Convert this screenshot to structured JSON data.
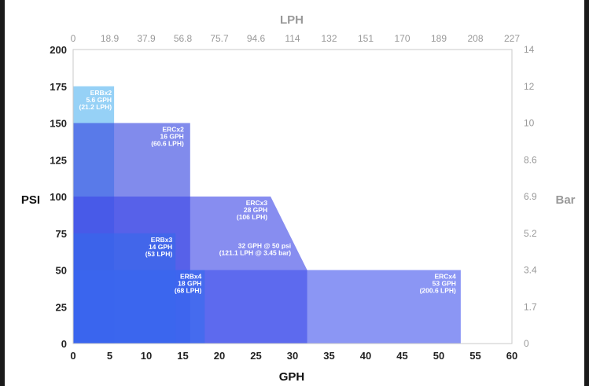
{
  "chart_data": {
    "type": "area",
    "xlabel": "GPH",
    "ylabel": "PSI",
    "x2label": "LPH",
    "y2label": "Bar",
    "xlim": [
      0,
      60
    ],
    "ylim": [
      0,
      200
    ],
    "x_ticks": [
      "0",
      "5",
      "10",
      "15",
      "20",
      "25",
      "30",
      "35",
      "40",
      "45",
      "50",
      "55",
      "60"
    ],
    "y_ticks": [
      "0",
      "25",
      "50",
      "75",
      "100",
      "125",
      "150",
      "175",
      "200"
    ],
    "x2_ticks": [
      "0",
      "18.9",
      "37.9",
      "56.8",
      "75.7",
      "94.6",
      "114",
      "132",
      "151",
      "170",
      "189",
      "208",
      "227"
    ],
    "y2_ticks": [
      "0",
      "1.7",
      "3.4",
      "5.2",
      "6.9",
      "8.6",
      "10",
      "12",
      "14"
    ],
    "series": [
      {
        "name": "ERBx2",
        "label": [
          "ERBx2",
          "5.6 GPH",
          "(21.2 LPH)"
        ],
        "color": "#55b4f0",
        "polygon": [
          [
            0,
            0
          ],
          [
            5.6,
            0
          ],
          [
            5.6,
            175
          ],
          [
            0,
            175
          ]
        ]
      },
      {
        "name": "ERCx2",
        "label": [
          "ERCx2",
          "16 GPH",
          "(60.6 LPH)"
        ],
        "color": "#3344e0",
        "polygon": [
          [
            0,
            0
          ],
          [
            16,
            0
          ],
          [
            16,
            150
          ],
          [
            0,
            150
          ]
        ]
      },
      {
        "name": "ERBx3",
        "label": [
          "ERBx3",
          "14 GPH",
          "(53 LPH)"
        ],
        "color": "#2a9ff0",
        "polygon": [
          [
            0,
            0
          ],
          [
            14,
            0
          ],
          [
            14,
            75
          ],
          [
            0,
            75
          ]
        ]
      },
      {
        "name": "ERCx3",
        "label": [
          "ERCx3",
          "28 GPH",
          "(106 LPH)"
        ],
        "color": "#3d47e6",
        "polygon": [
          [
            0,
            0
          ],
          [
            32,
            0
          ],
          [
            32,
            50
          ],
          [
            27,
            100
          ],
          [
            0,
            100
          ]
        ]
      },
      {
        "name": "ERBx4",
        "label": [
          "ERBx4",
          "18 GPH",
          "(68 LPH)"
        ],
        "color": "#2090f0",
        "polygon": [
          [
            0,
            0
          ],
          [
            18,
            0
          ],
          [
            18,
            50
          ],
          [
            0,
            50
          ]
        ]
      },
      {
        "name": "ERCx4",
        "label": [
          "ERCx4",
          "53 GPH",
          "(200.6 LPH)"
        ],
        "color": "#4455ee",
        "polygon": [
          [
            0,
            0
          ],
          [
            53,
            0
          ],
          [
            53,
            50
          ],
          [
            0,
            50
          ]
        ]
      }
    ],
    "annotations": [
      {
        "text": [
          "32 GPH @ 50 psi",
          "(121.1 LPH @ 3.45 bar)"
        ]
      }
    ]
  }
}
